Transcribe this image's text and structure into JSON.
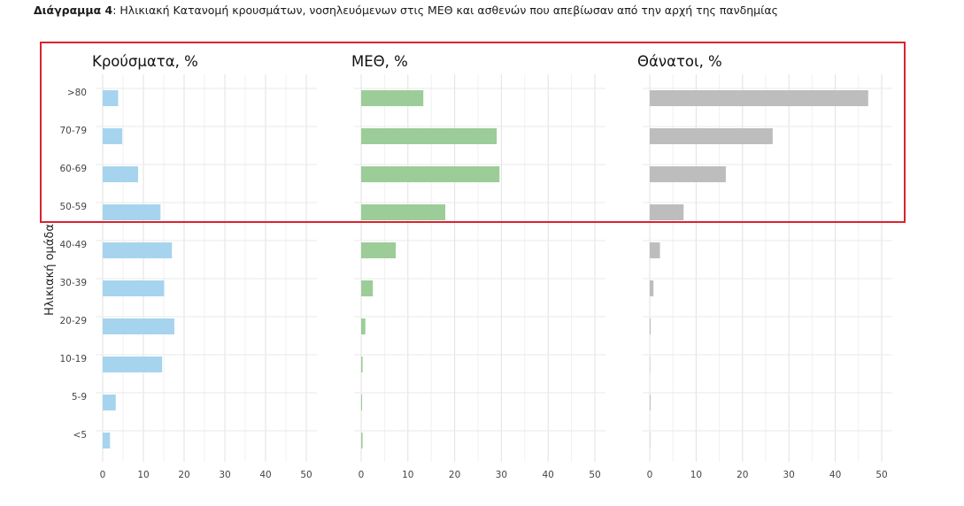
{
  "caption": {
    "prefix": "Διάγραμμα 4",
    "text": ": Ηλικιακή Κατανομή κρουσμάτων, νοσηλευόμενων στις ΜΕΘ και ασθενών που απεβίωσαν από την αρχή της πανδημίας"
  },
  "chart_data": {
    "type": "bar",
    "orientation": "horizontal",
    "ylabel": "Ηλικιακή ομάδα",
    "categories": [
      ">80",
      "70-79",
      "60-69",
      "50-59",
      "40-49",
      "30-39",
      "20-29",
      "10-19",
      "5-9",
      "<5"
    ],
    "xlim": [
      0,
      50
    ],
    "xticks": [
      0,
      10,
      20,
      30,
      40,
      50
    ],
    "grid": true,
    "panels": [
      {
        "title": "Κρούσματα, %",
        "color": "#a6d4ee",
        "values": [
          3.8,
          4.8,
          8.7,
          14.2,
          17.0,
          15.1,
          17.6,
          14.6,
          3.2,
          1.8
        ]
      },
      {
        "title": "ΜΕΘ, %",
        "color": "#9ccd98",
        "values": [
          13.3,
          29.0,
          29.6,
          18.0,
          7.4,
          2.5,
          0.9,
          0.3,
          0.2,
          0.3
        ]
      },
      {
        "title": "Θάνατοι, %",
        "color": "#bdbdbd",
        "values": [
          47.1,
          26.5,
          16.4,
          7.3,
          2.2,
          0.8,
          0.2,
          0.1,
          0.0,
          0.1
        ]
      }
    ],
    "highlight": {
      "categories": [
        ">80",
        "70-79",
        "60-69",
        "50-59"
      ],
      "color": "#d9232e"
    }
  }
}
